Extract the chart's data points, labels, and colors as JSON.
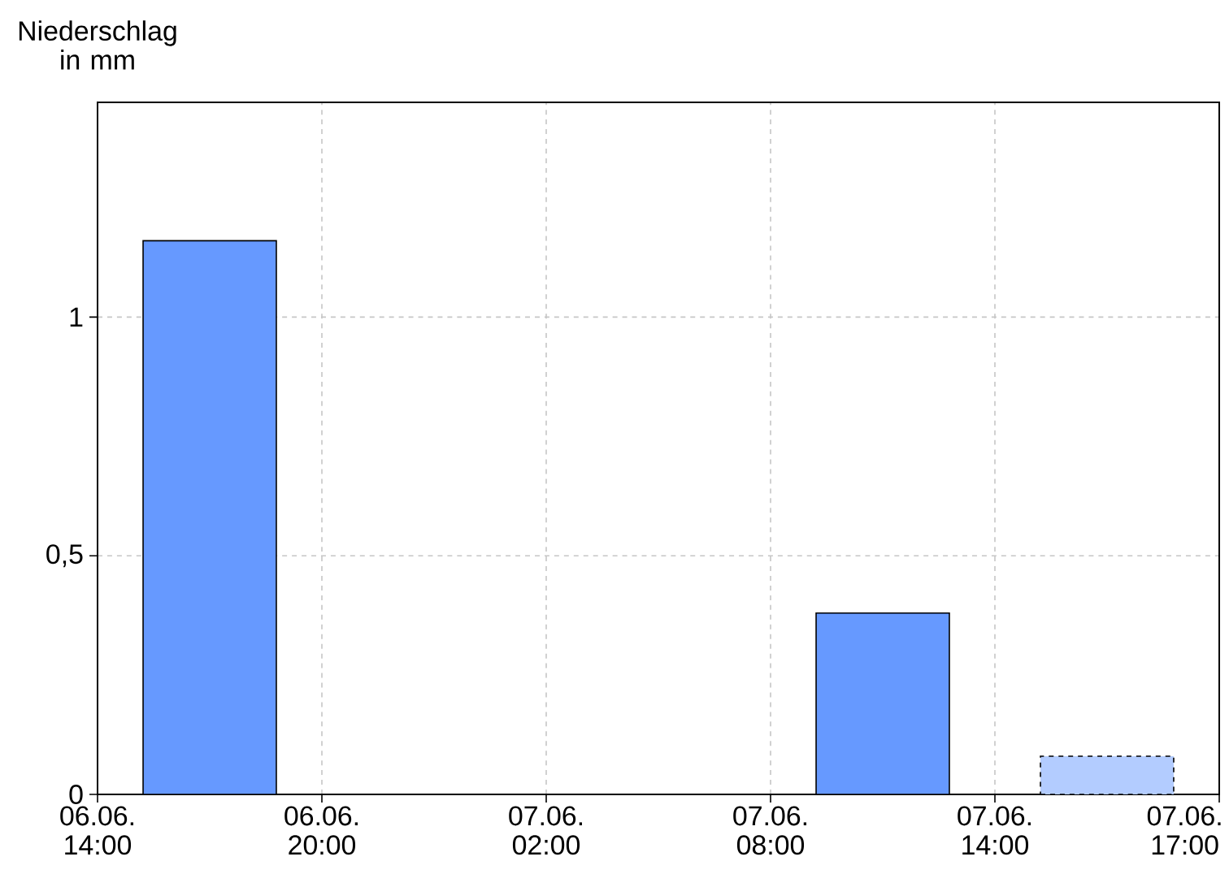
{
  "chart_data": {
    "type": "bar",
    "ylabel": "Niederschlag in mm",
    "categories": [
      "06.06. 14:00",
      "06.06. 20:00",
      "07.06. 02:00",
      "07.06. 08:00",
      "07.06. 14:00",
      "07.06. 17:00"
    ],
    "series": [
      {
        "color": "#6699ff",
        "values": [
          1.16,
          null,
          null,
          0.38,
          null,
          null
        ]
      },
      {
        "color": "#b3ccff",
        "values": [
          null,
          null,
          null,
          null,
          0.08,
          null
        ],
        "line_style": "dashed"
      }
    ],
    "ylim": [
      0,
      1.45
    ],
    "yticks": [
      0,
      {
        "value": 0.5,
        "label": "0,5"
      },
      1
    ],
    "grid": true
  }
}
